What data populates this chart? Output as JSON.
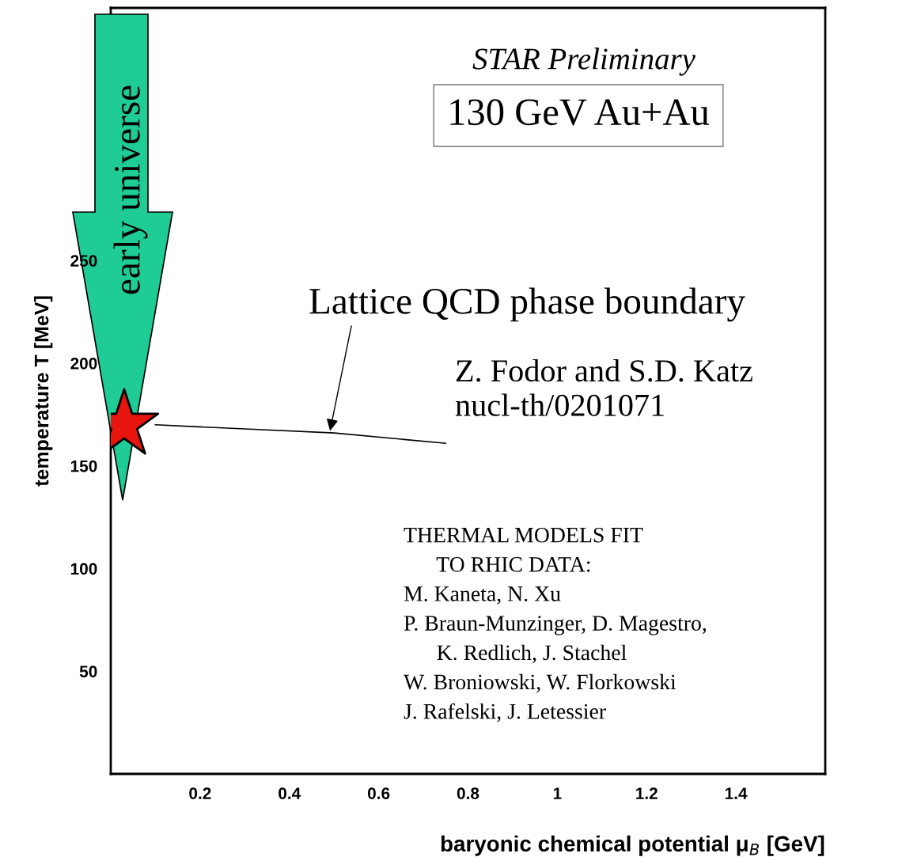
{
  "chart_data": {
    "type": "scatter",
    "xlabel": "baryonic chemical potential μ$_{B}$ [GeV]",
    "ylabel": "temperature T [MeV]",
    "xlim": [
      0,
      1.6
    ],
    "ylim": [
      0,
      373
    ],
    "xticks": [
      0.2,
      0.4,
      0.6,
      0.8,
      1,
      1.2,
      1.4
    ],
    "yticks": [
      50,
      100,
      150,
      200,
      250
    ],
    "grid": false,
    "legend": false,
    "series": [
      {
        "type": "line",
        "color": "#000000",
        "x": [
          0.1,
          0.3,
          0.5,
          0.75
        ],
        "values": [
          170,
          168,
          166,
          161
        ],
        "marker": "none",
        "line_style": "solid"
      },
      {
        "color": "#e8150e",
        "x": [
          0.03
        ],
        "values": [
          170
        ],
        "marker": "star"
      }
    ],
    "annotations": [
      "STAR Preliminary",
      "130 GeV Au+Au",
      {
        "text": "Lattice QCD phase boundary",
        "x": 0.49,
        "y": 166
      },
      "Z. Fodor and S.D. Katz\nnucl-th/0201071",
      "THERMAL MODELS FIT\n      TO RHIC DATA:\nM. Kaneta, N. Xu\nP. Braun-Munzinger, D. Magestro,\n      K. Redlich, J. Stachel\nW. Broniowski, W. Florkowski\nJ. Rafelski, J. Letessier",
      "early universe"
    ]
  }
}
